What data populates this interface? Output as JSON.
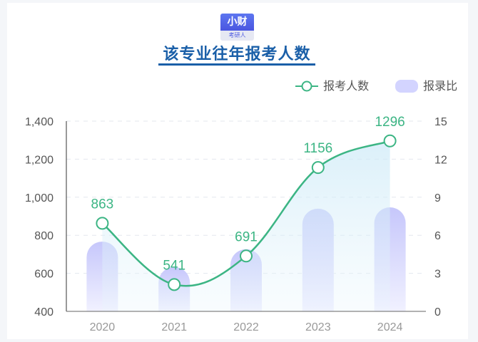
{
  "badge": {
    "top": "小财",
    "bottom": "考研人"
  },
  "title": "该专业往年报考人数",
  "legend": [
    {
      "name": "报考人数",
      "color": "#3cb584"
    },
    {
      "name": "报录比",
      "color": "#cfd0ff"
    }
  ],
  "chart_data": {
    "type": "line",
    "title": "该专业往年报考人数",
    "categories": [
      "2020",
      "2021",
      "2022",
      "2023",
      "2024"
    ],
    "series": [
      {
        "name": "报考人数",
        "type": "line",
        "values": [
          863,
          541,
          691,
          1156,
          1296
        ],
        "axis": "left",
        "color": "#3cb584"
      },
      {
        "name": "报录比",
        "type": "bar",
        "values": [
          5.5,
          3.5,
          4.9,
          8.1,
          8.2
        ],
        "axis": "right",
        "color": "#cfd0ff"
      }
    ],
    "ylim": [
      400,
      1400
    ],
    "yticks": [
      "1,400",
      "1,200",
      "1,000",
      "800",
      "600",
      "400"
    ],
    "y2lim": [
      0,
      15
    ],
    "y2ticks": [
      "15",
      "12",
      "9",
      "6",
      "3",
      "0"
    ],
    "grid": true,
    "legend_position": "top-right"
  }
}
